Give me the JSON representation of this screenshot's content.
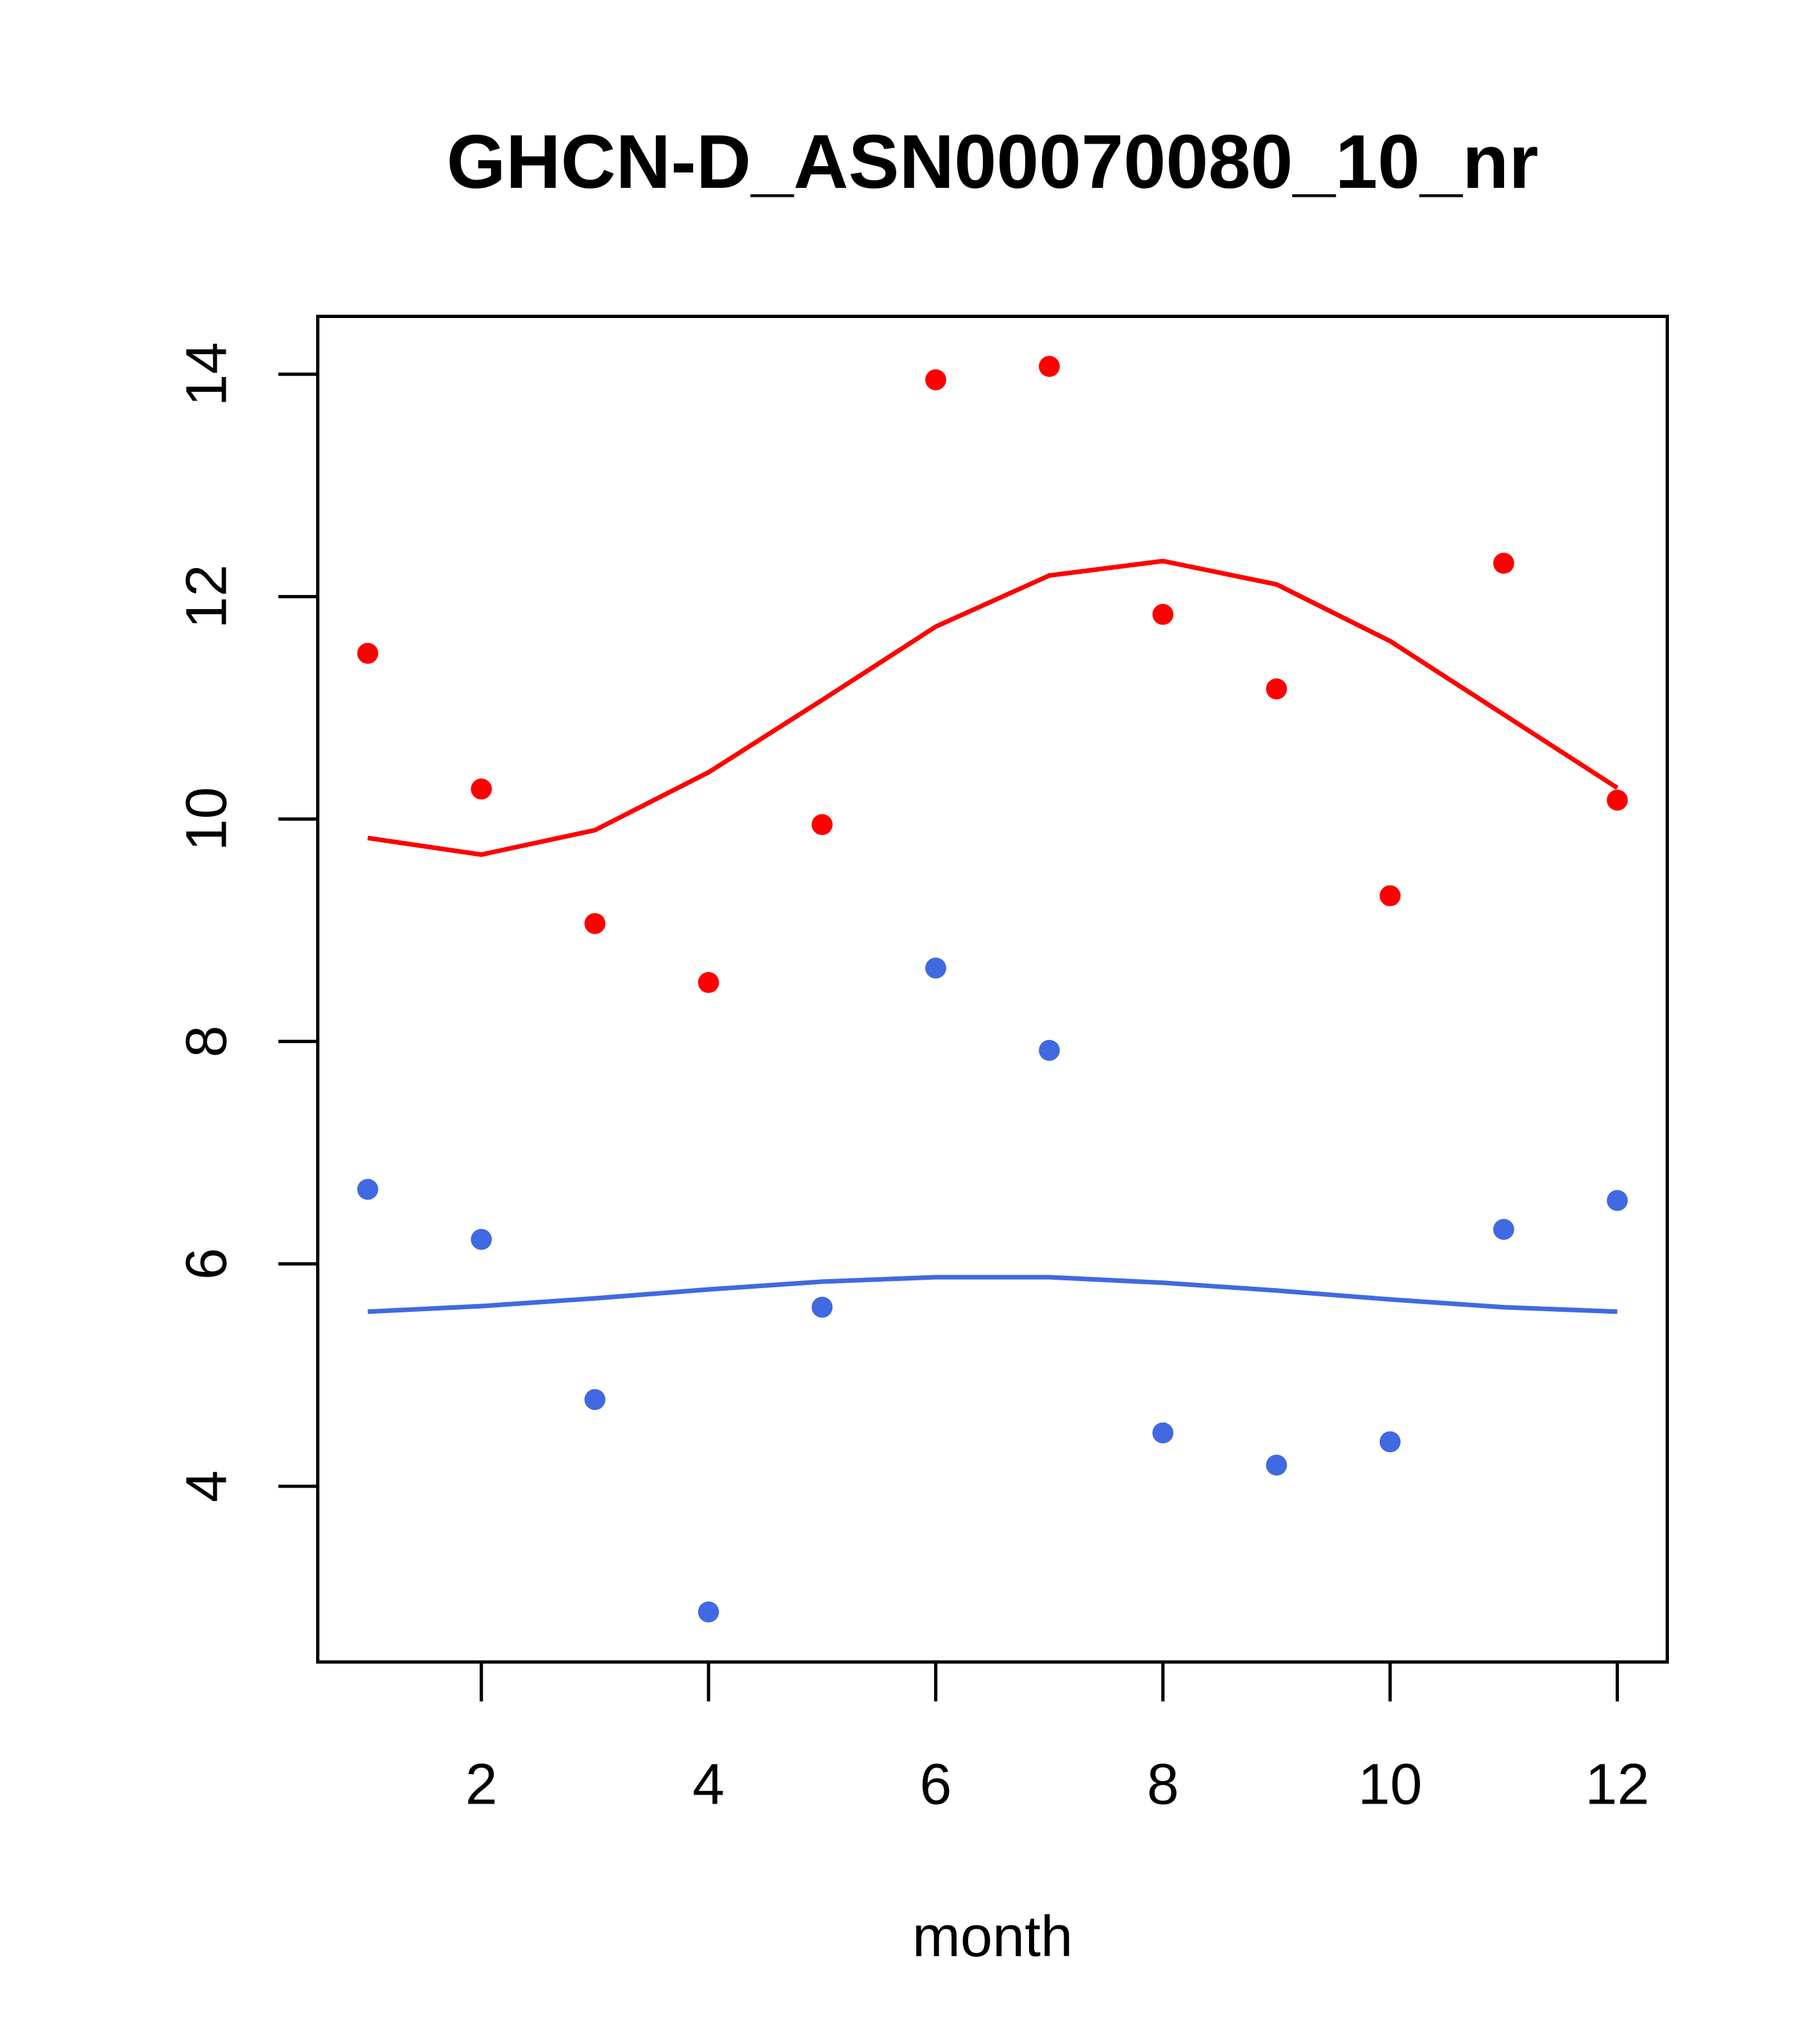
{
  "chart_data": {
    "type": "scatter",
    "title": "GHCN-D_ASN00070080_10_nr",
    "xlabel": "month",
    "ylabel": "",
    "xlim": [
      0.56,
      12.44
    ],
    "ylim": [
      2.42,
      14.52
    ],
    "xticks": [
      2,
      4,
      6,
      8,
      10,
      12
    ],
    "yticks": [
      4,
      6,
      8,
      10,
      12,
      14
    ],
    "grid": false,
    "x": [
      1,
      2,
      3,
      4,
      5,
      6,
      7,
      8,
      9,
      10,
      11,
      12
    ],
    "series": [
      {
        "name": "red points",
        "kind": "points",
        "color": "#ff0000",
        "values": [
          11.49,
          10.27,
          9.06,
          8.53,
          9.95,
          13.95,
          14.07,
          11.84,
          11.17,
          9.31,
          12.3,
          10.17
        ]
      },
      {
        "name": "red line",
        "kind": "line",
        "color": "#ff0000",
        "values": [
          9.83,
          9.68,
          9.9,
          10.42,
          11.07,
          11.73,
          12.19,
          12.32,
          12.11,
          11.6,
          10.94,
          10.28
        ]
      },
      {
        "name": "blue points",
        "kind": "points",
        "color": "#4169e1",
        "values": [
          6.67,
          6.22,
          4.78,
          2.87,
          5.61,
          8.66,
          7.92,
          4.48,
          4.19,
          4.4,
          6.31,
          6.57
        ]
      },
      {
        "name": "blue line",
        "kind": "line",
        "color": "#4169e1",
        "values": [
          5.57,
          5.62,
          5.69,
          5.77,
          5.84,
          5.88,
          5.88,
          5.83,
          5.76,
          5.68,
          5.61,
          5.57
        ]
      }
    ]
  }
}
